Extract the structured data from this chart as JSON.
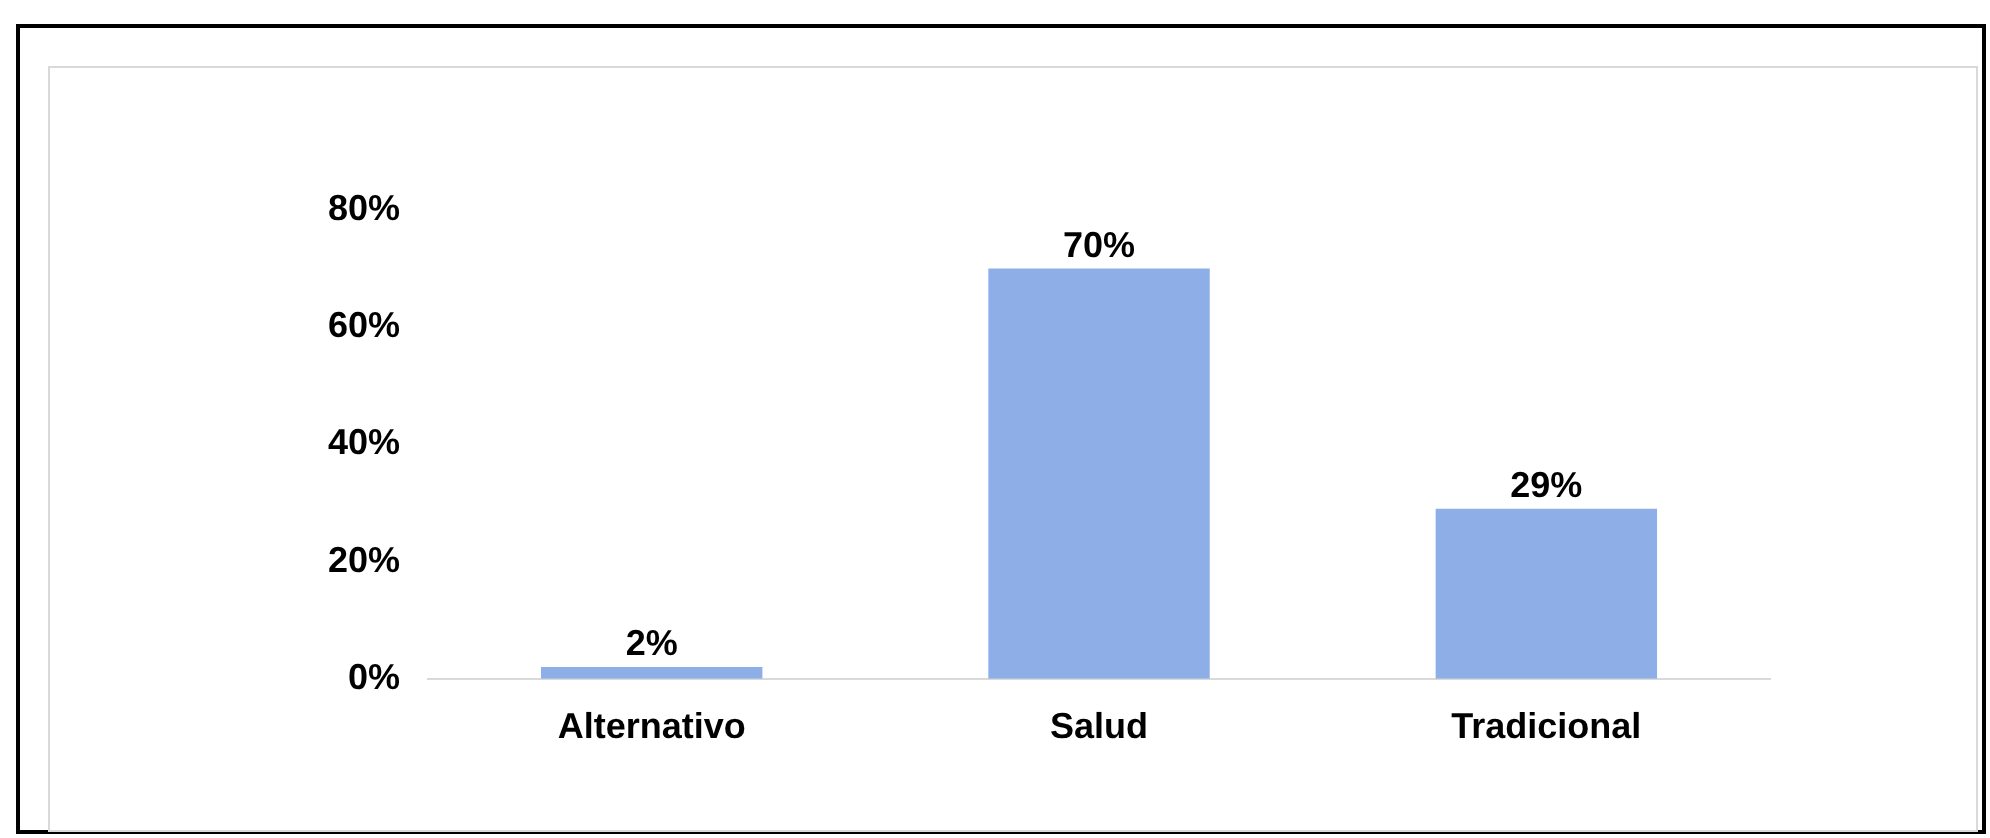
{
  "chart_data": {
    "type": "bar",
    "categories": [
      "Alternativo",
      "Salud",
      "Tradicional"
    ],
    "values": [
      2,
      70,
      29
    ],
    "color": "#8eaee8",
    "value_labels": [
      "2%",
      "70%",
      "29%"
    ],
    "ylim": [
      0,
      80
    ],
    "yticks": [
      {
        "value": 0,
        "label": "0%"
      },
      {
        "value": 20,
        "label": "20%"
      },
      {
        "value": 40,
        "label": "40%"
      },
      {
        "value": 60,
        "label": "60%"
      },
      {
        "value": 80,
        "label": "80%"
      }
    ],
    "grid": false,
    "legend": false
  }
}
